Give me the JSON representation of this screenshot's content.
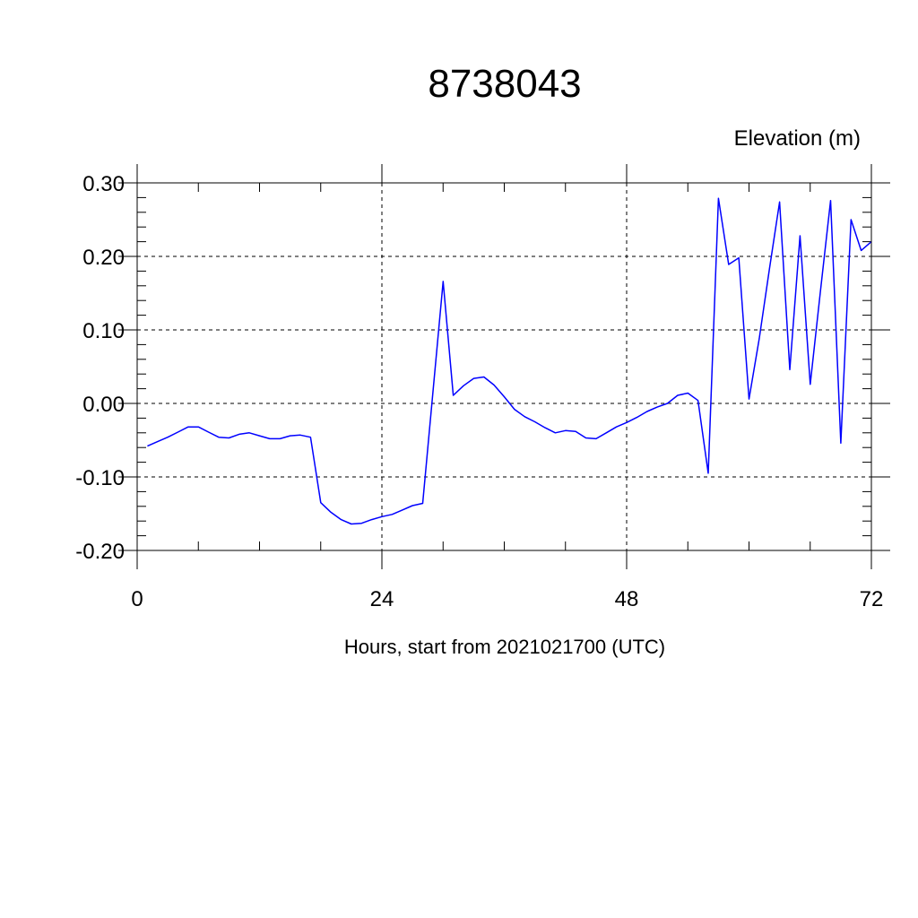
{
  "chart_data": {
    "type": "line",
    "title": "8738043",
    "ylabel": "Elevation (m)",
    "xlabel": "Hours, start from 2021021700 (UTC)",
    "xlim": [
      0,
      72
    ],
    "ylim": [
      -0.2,
      0.3
    ],
    "x_ticks": [
      0,
      24,
      48,
      72
    ],
    "x_tick_labels": [
      "0",
      "24",
      "48",
      "72"
    ],
    "y_ticks": [
      -0.2,
      -0.1,
      0.0,
      0.1,
      0.2,
      0.3
    ],
    "y_tick_labels": [
      "-0.20",
      "-0.10",
      "0.00",
      "0.10",
      "0.20",
      "0.30"
    ],
    "grid": true,
    "line_color": "#0000ff",
    "series": [
      {
        "x": [
          1,
          2,
          3,
          4,
          5,
          6,
          7,
          8,
          9,
          10,
          11,
          12,
          13,
          14,
          15,
          16,
          17,
          18,
          19,
          20,
          21,
          22,
          23,
          24,
          25,
          26,
          27,
          28,
          29,
          30,
          31,
          32,
          33,
          34,
          35,
          36,
          37,
          38,
          39,
          40,
          41,
          42,
          43,
          44,
          45,
          46,
          47,
          48,
          49,
          50,
          51,
          52,
          53,
          54,
          55,
          56,
          57,
          58,
          59,
          60,
          61,
          62,
          63,
          64,
          65,
          66,
          67,
          68,
          69,
          70,
          71,
          72
        ],
        "values": [
          -0.058,
          -0.052,
          -0.046,
          -0.039,
          -0.032,
          -0.032,
          -0.039,
          -0.046,
          -0.047,
          -0.042,
          -0.04,
          -0.044,
          -0.048,
          -0.048,
          -0.044,
          -0.043,
          -0.046,
          -0.135,
          -0.148,
          -0.158,
          -0.164,
          -0.163,
          -0.158,
          -0.154,
          -0.151,
          -0.145,
          -0.139,
          -0.136,
          0.015,
          0.166,
          0.011,
          0.024,
          0.034,
          0.036,
          0.025,
          0.009,
          -0.008,
          -0.018,
          -0.025,
          -0.033,
          -0.04,
          -0.037,
          -0.038,
          -0.047,
          -0.048,
          -0.04,
          -0.032,
          -0.026,
          -0.019,
          -0.011,
          -0.005,
          0.0,
          0.011,
          0.014,
          0.004,
          -0.095,
          0.279,
          0.189,
          0.198,
          0.006,
          0.088,
          0.183,
          0.274,
          0.046,
          0.228,
          0.026,
          0.152,
          0.276,
          -0.054,
          0.25,
          0.208,
          0.22
        ]
      }
    ]
  }
}
